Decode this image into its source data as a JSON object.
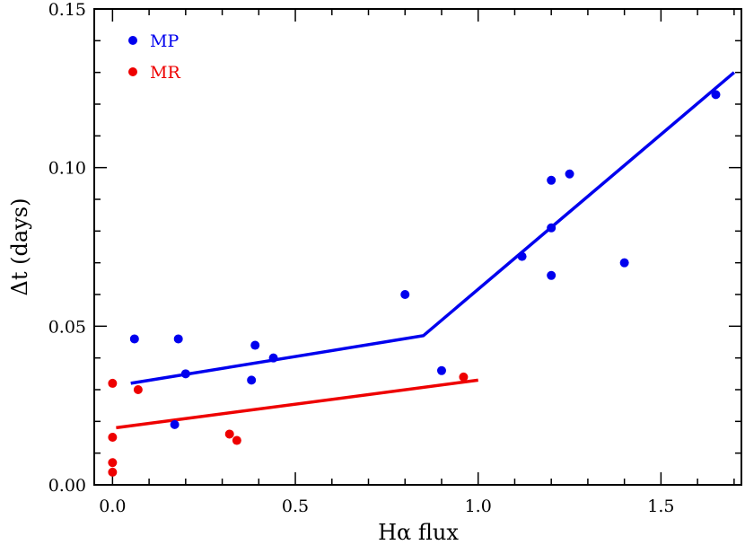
{
  "chart_data": {
    "type": "scatter",
    "title": "",
    "xlabel": "Hα  flux",
    "ylabel": "Δt  (days)",
    "xlim": [
      -0.05,
      1.72
    ],
    "ylim": [
      0.0,
      0.15
    ],
    "x_ticks": [
      "0.0",
      "0.5",
      "1.0",
      "1.5"
    ],
    "x_tick_values": [
      0.0,
      0.5,
      1.0,
      1.5
    ],
    "x_minor_step": 0.1,
    "y_ticks": [
      "0.00",
      "0.05",
      "0.10",
      "0.15"
    ],
    "y_tick_values": [
      0.0,
      0.05,
      0.1,
      0.15
    ],
    "y_minor_step": 0.01,
    "grid": false,
    "legend_position": "top-left",
    "series": [
      {
        "name": "MP",
        "color": "#0000ee",
        "points": [
          [
            0.06,
            0.046
          ],
          [
            0.18,
            0.046
          ],
          [
            0.2,
            0.035
          ],
          [
            0.17,
            0.019
          ],
          [
            0.38,
            0.033
          ],
          [
            0.39,
            0.044
          ],
          [
            0.44,
            0.04
          ],
          [
            0.8,
            0.06
          ],
          [
            0.9,
            0.036
          ],
          [
            1.12,
            0.072
          ],
          [
            1.2,
            0.096
          ],
          [
            1.2,
            0.081
          ],
          [
            1.2,
            0.066
          ],
          [
            1.25,
            0.098
          ],
          [
            1.4,
            0.07
          ],
          [
            1.65,
            0.123
          ]
        ],
        "fit_line": [
          [
            0.05,
            0.032
          ],
          [
            0.85,
            0.047
          ],
          [
            1.7,
            0.13
          ]
        ]
      },
      {
        "name": "MR",
        "color": "#ee0000",
        "points": [
          [
            0.0,
            0.032
          ],
          [
            0.0,
            0.015
          ],
          [
            0.0,
            0.007
          ],
          [
            0.0,
            0.004
          ],
          [
            0.07,
            0.03
          ],
          [
            0.32,
            0.016
          ],
          [
            0.34,
            0.014
          ],
          [
            0.96,
            0.034
          ]
        ],
        "fit_line": [
          [
            0.01,
            0.018
          ],
          [
            1.0,
            0.033
          ]
        ]
      }
    ]
  }
}
